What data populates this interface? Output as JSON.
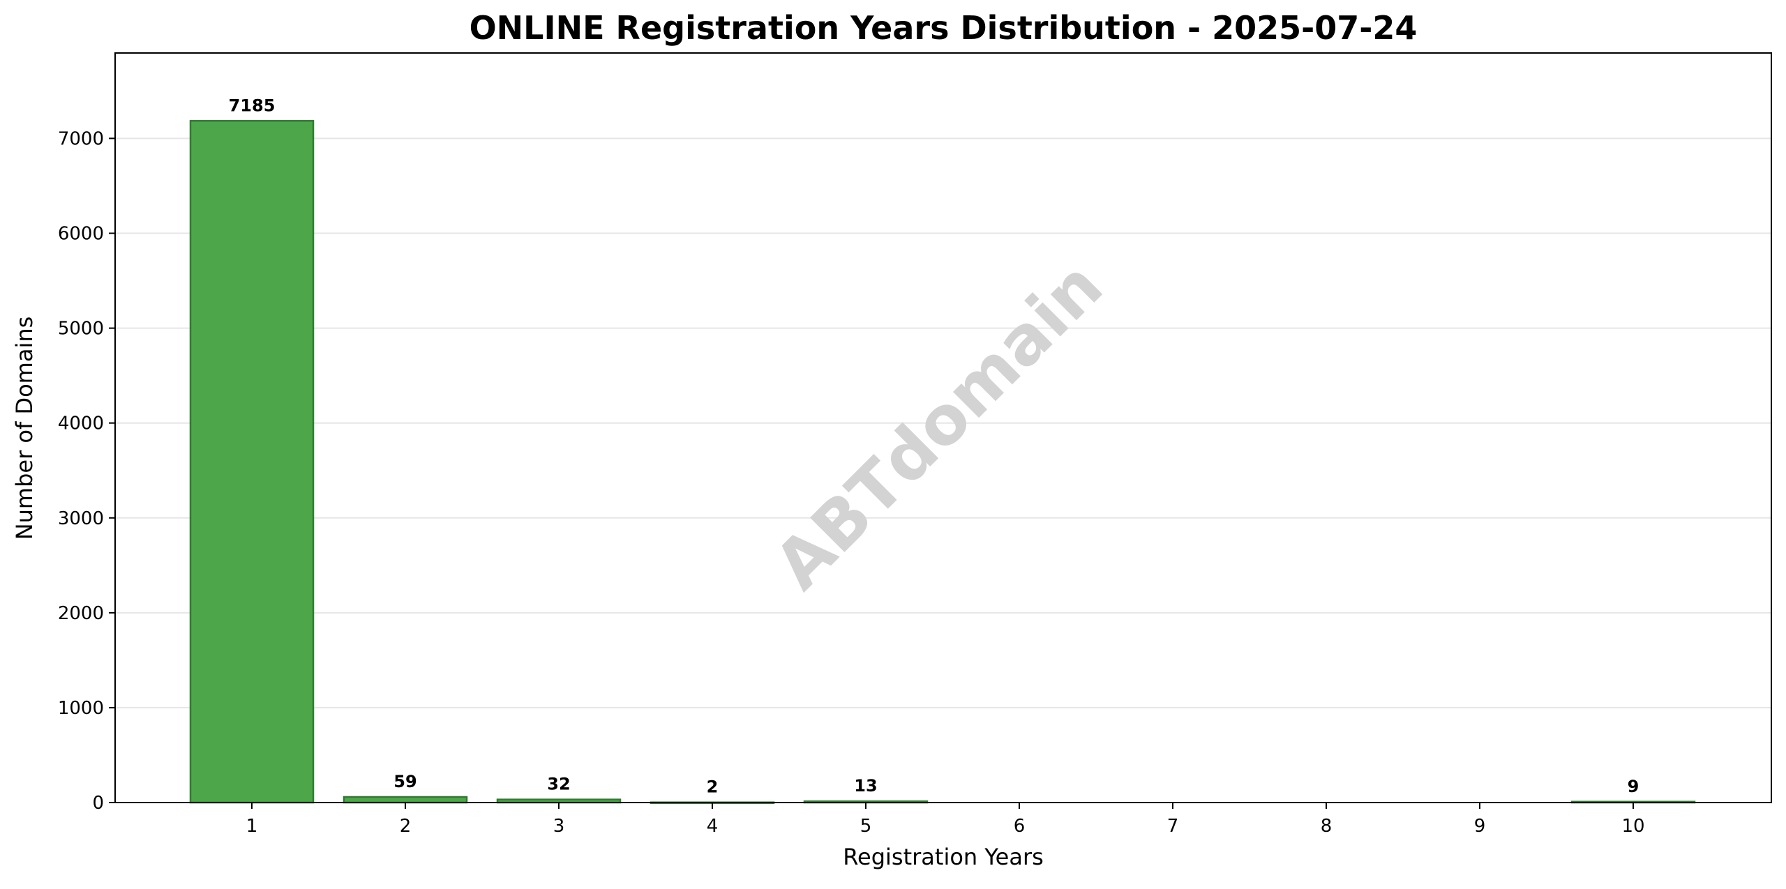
{
  "chart_data": {
    "type": "bar",
    "title": "ONLINE Registration Years Distribution - 2025-07-24",
    "xlabel": "Registration Years",
    "ylabel": "Number of Domains",
    "categories": [
      "1",
      "2",
      "3",
      "4",
      "5",
      "6",
      "7",
      "8",
      "9",
      "10"
    ],
    "values": [
      7185,
      59,
      32,
      2,
      13,
      0,
      0,
      0,
      0,
      9
    ],
    "data_labels": [
      "7185",
      "59",
      "32",
      "2",
      "13",
      "",
      "",
      "",
      "",
      "9"
    ],
    "yticks": [
      0,
      1000,
      2000,
      3000,
      4000,
      5000,
      6000,
      7000
    ],
    "ylim": [
      0,
      7900
    ],
    "grid": "y-axis",
    "watermark": "ABTdomain",
    "colors": {
      "bar_fill": "#4ea64b",
      "bar_edge": "#2e7d2e",
      "gridline": "#e6e6e6",
      "axis": "#000000",
      "watermark": "#d3d3d3"
    }
  }
}
